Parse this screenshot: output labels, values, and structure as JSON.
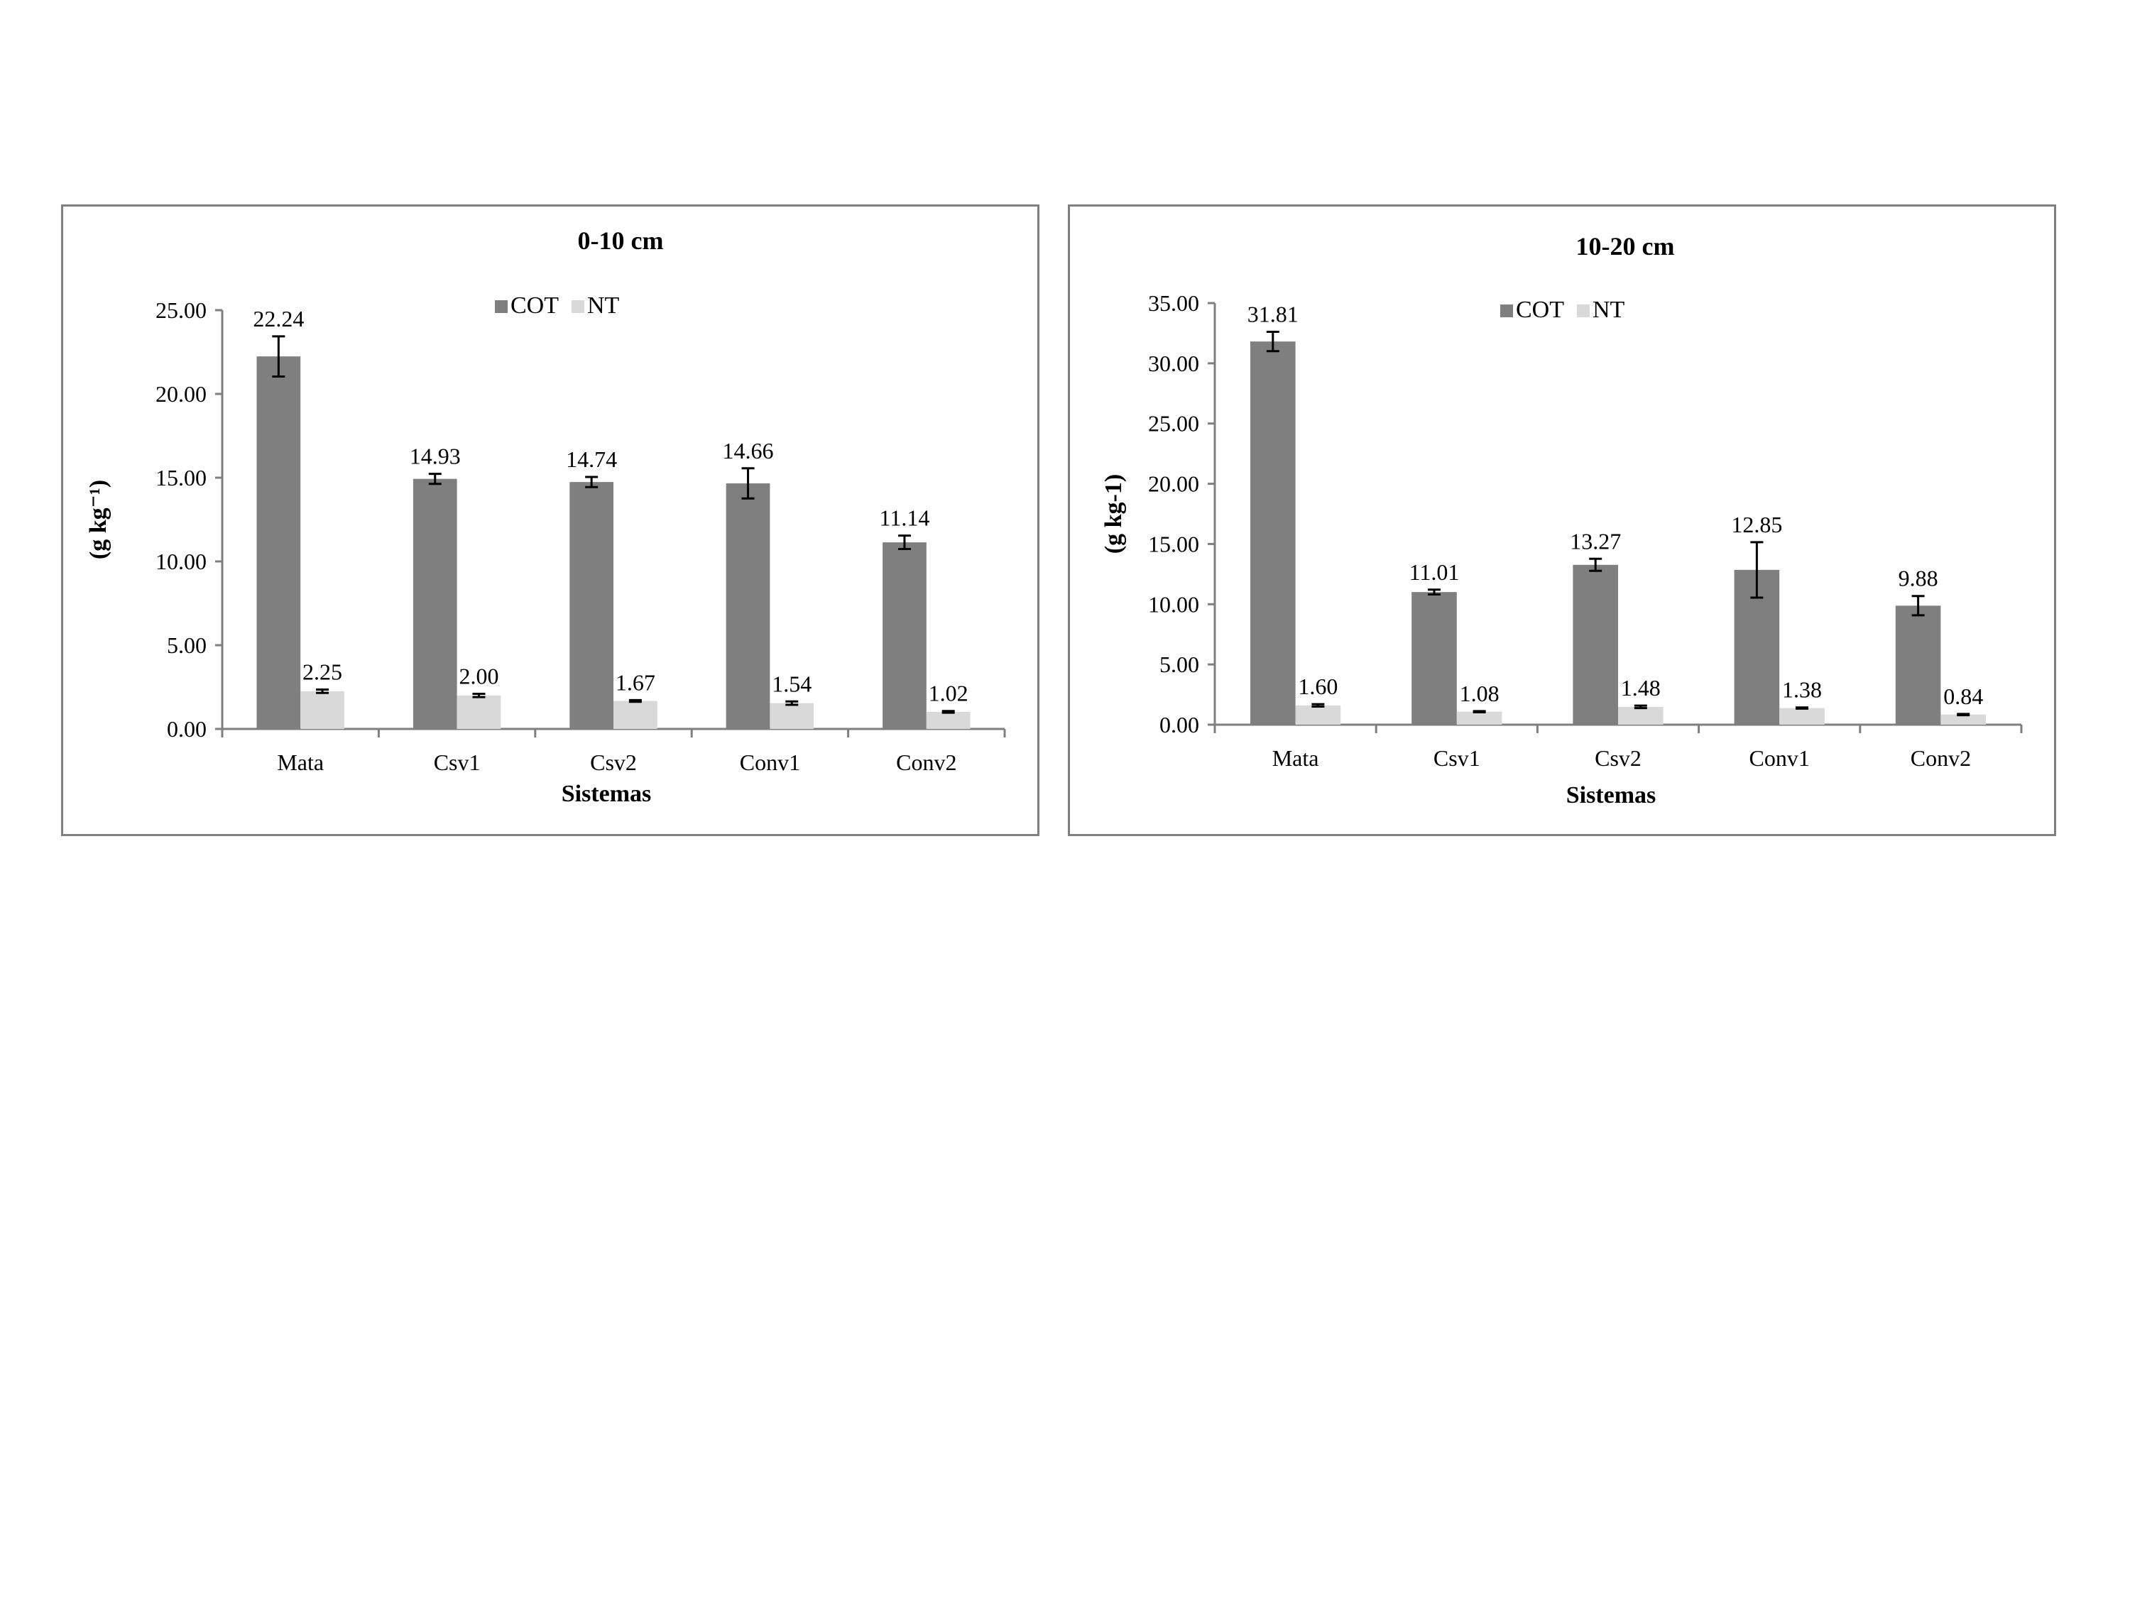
{
  "colors": {
    "cot": "#7f7f7f",
    "nt": "#d9d9d9",
    "axis": "#7f7f7f",
    "text": "#000000"
  },
  "chart_data": [
    {
      "type": "bar",
      "title": "0-10 cm",
      "xlabel": "Sistemas",
      "ylabel": "(g kg⁻¹)",
      "categories": [
        "Mata",
        "Csv1",
        "Csv2",
        "Conv1",
        "Conv2"
      ],
      "ylim": [
        0,
        25
      ],
      "yticks": [
        "0.00",
        "5.00",
        "10.00",
        "15.00",
        "20.00",
        "25.00"
      ],
      "legend": "top-center",
      "grid": false,
      "series": [
        {
          "name": "COT",
          "values": [
            22.24,
            14.93,
            14.74,
            14.66,
            11.14
          ],
          "labels": [
            "22.24",
            "14.93",
            "14.74",
            "14.66",
            "11.14"
          ],
          "errors": [
            1.2,
            0.3,
            0.3,
            0.9,
            0.4
          ]
        },
        {
          "name": "NT",
          "values": [
            2.25,
            2.0,
            1.67,
            1.54,
            1.02
          ],
          "labels": [
            "2.25",
            "2.00",
            "1.67",
            "1.54",
            "1.02"
          ],
          "errors": [
            0.1,
            0.1,
            0.05,
            0.1,
            0.05
          ]
        }
      ]
    },
    {
      "type": "bar",
      "title": "10-20 cm",
      "xlabel": "Sistemas",
      "ylabel": "(g kg-1)",
      "categories": [
        "Mata",
        "Csv1",
        "Csv2",
        "Conv1",
        "Conv2"
      ],
      "ylim": [
        0,
        35
      ],
      "yticks": [
        "0.00",
        "5.00",
        "10.00",
        "15.00",
        "20.00",
        "25.00",
        "30.00",
        "35.00"
      ],
      "legend": "top-center",
      "grid": false,
      "series": [
        {
          "name": "COT",
          "values": [
            31.81,
            11.01,
            13.27,
            12.85,
            9.88
          ],
          "labels": [
            "31.81",
            "11.01",
            "13.27",
            "12.85",
            "9.88"
          ],
          "errors": [
            0.8,
            0.2,
            0.5,
            2.3,
            0.8
          ]
        },
        {
          "name": "NT",
          "values": [
            1.6,
            1.08,
            1.48,
            1.38,
            0.84
          ],
          "labels": [
            "1.60",
            "1.08",
            "1.48",
            "1.38",
            "0.84"
          ],
          "errors": [
            0.1,
            0.05,
            0.1,
            0.05,
            0.05
          ]
        }
      ]
    }
  ]
}
